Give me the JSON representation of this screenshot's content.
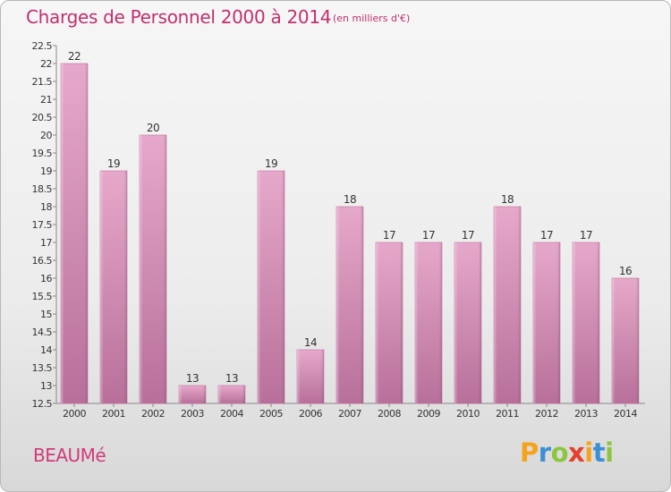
{
  "header": {
    "title": "Charges de Personnel 2000 à 2014",
    "subtitle": "(en milliers d'€)"
  },
  "footer": {
    "commune": "BEAUMé",
    "logo_letters": [
      {
        "char": "P",
        "color": "#f7a21b"
      },
      {
        "char": "r",
        "color": "#3c8fd6"
      },
      {
        "char": "o",
        "color": "#8cc63f"
      },
      {
        "char": "x",
        "color": "#e5402a"
      },
      {
        "char": "i",
        "color": "#f7a21b"
      },
      {
        "char": "t",
        "color": "#3c8fd6"
      },
      {
        "char": "i",
        "color": "#8cc63f"
      }
    ]
  },
  "chart_data": {
    "type": "bar",
    "title": "Charges de Personnel 2000 à 2014",
    "subtitle": "(en milliers d'€)",
    "categories": [
      "2000",
      "2001",
      "2002",
      "2003",
      "2004",
      "2005",
      "2006",
      "2007",
      "2008",
      "2009",
      "2010",
      "2011",
      "2012",
      "2013",
      "2014"
    ],
    "values": [
      22,
      19,
      20,
      13,
      13,
      19,
      14,
      18,
      17,
      17,
      17,
      18,
      17,
      17,
      16
    ],
    "data_labels": [
      "22",
      "19",
      "20",
      "13",
      "13",
      "19",
      "14",
      "18",
      "17",
      "17",
      "17",
      "18",
      "17",
      "17",
      "16"
    ],
    "ylim": [
      12.5,
      22.5
    ],
    "yticks": [
      "12.5",
      "13",
      "13.5",
      "14",
      "14.5",
      "15",
      "15.5",
      "16",
      "16.5",
      "17",
      "17.5",
      "18",
      "18.5",
      "19",
      "19.5",
      "20",
      "20.5",
      "21",
      "21.5",
      "22",
      "22.5"
    ],
    "bar_color": "#d98db4",
    "grid": false,
    "legend": "none"
  }
}
